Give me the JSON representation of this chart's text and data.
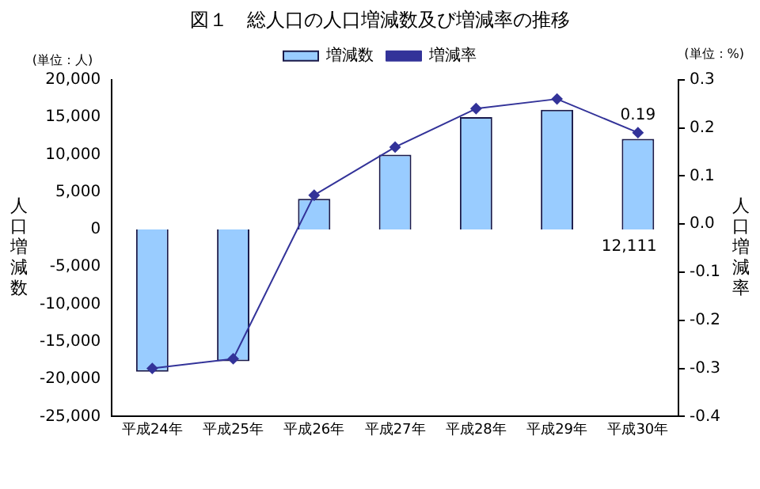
{
  "chart_data": {
    "type": "bar",
    "title": "図１　総人口の人口増減数及び増減率の推移",
    "ylabel": "人口増減数",
    "y2label": "人口増減率",
    "annotations": [
      "(単位：人)",
      "(単位：%)"
    ],
    "categories": [
      "平成24年",
      "平成25年",
      "平成26年",
      "平成27年",
      "平成28年",
      "平成29年",
      "平成30年"
    ],
    "series": [
      {
        "name": "増減数",
        "color": "#99ccff",
        "values": [
          -19000,
          -17600,
          4100,
          10000,
          15000,
          16000,
          12111
        ],
        "value_labels": [
          null,
          null,
          null,
          null,
          null,
          null,
          "12,111"
        ]
      },
      {
        "name": "増減率",
        "type": "line",
        "axis": "y2",
        "color": "#333399",
        "marker": "diamond",
        "values": [
          -0.3,
          -0.28,
          0.06,
          0.16,
          0.24,
          0.26,
          0.19
        ],
        "value_labels": [
          null,
          null,
          null,
          null,
          null,
          null,
          "0.19"
        ]
      }
    ],
    "ylim": [
      -25000,
      20000
    ],
    "yticks": [
      {
        "value": -25000,
        "label": "-25,000"
      },
      {
        "value": -20000,
        "label": "-20,000"
      },
      {
        "value": -15000,
        "label": "-15,000"
      },
      {
        "value": -10000,
        "label": "-10,000"
      },
      {
        "value": -5000,
        "label": "-5,000"
      },
      0,
      {
        "value": 5000,
        "label": "5,000"
      },
      {
        "value": 10000,
        "label": "10,000"
      },
      {
        "value": 15000,
        "label": "15,000"
      },
      {
        "value": 20000,
        "label": "20,000"
      }
    ],
    "y2lim": [
      -0.4,
      0.3
    ],
    "y2ticks": [
      {
        "value": -0.4,
        "label": "-0.4"
      },
      {
        "value": -0.3,
        "label": "-0.3"
      },
      {
        "value": -0.2,
        "label": "-0.2"
      },
      {
        "value": -0.1,
        "label": "-0.1"
      },
      {
        "value": 0,
        "label": "0.0"
      },
      {
        "value": 0.1,
        "label": "0.1"
      },
      {
        "value": 0.2,
        "label": "0.2"
      },
      {
        "value": 0.3,
        "label": "0.3"
      }
    ],
    "grid": false,
    "legend": "top"
  }
}
